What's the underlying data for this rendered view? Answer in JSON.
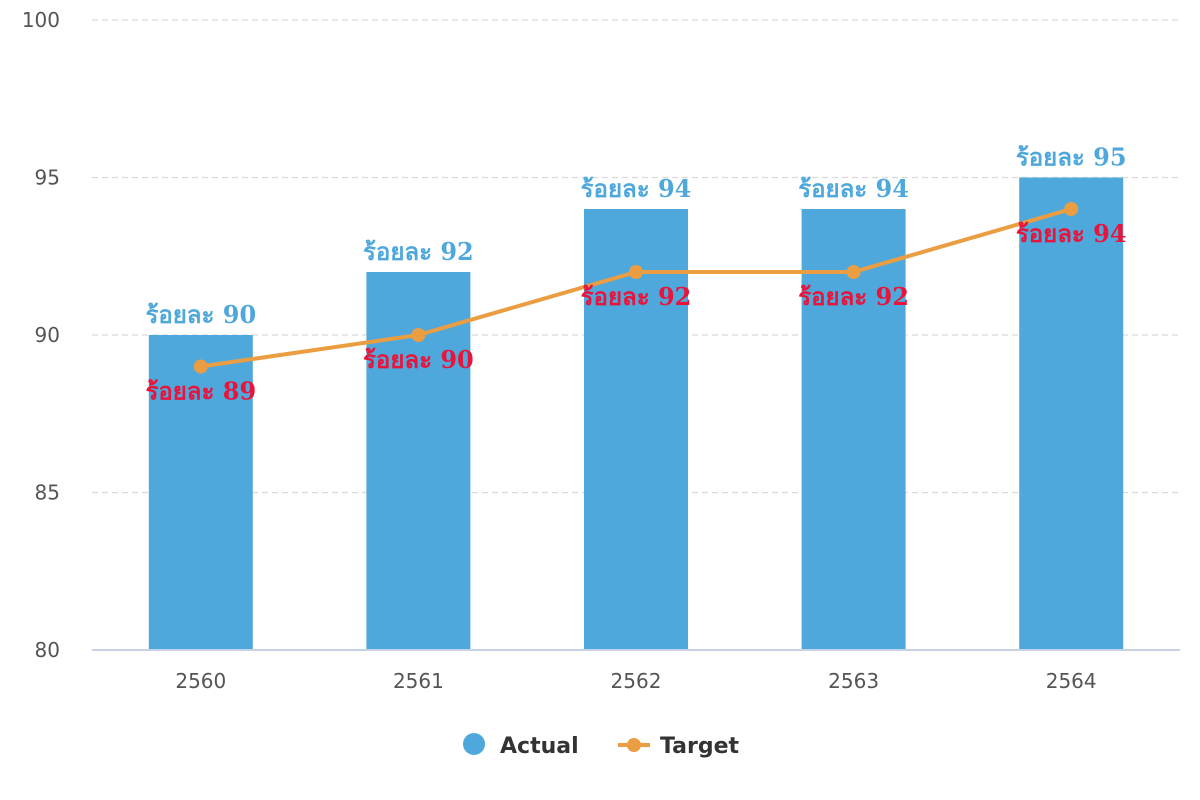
{
  "chart_data": {
    "type": "bar",
    "categories": [
      "2560",
      "2561",
      "2562",
      "2563",
      "2564"
    ],
    "series": [
      {
        "name": "Actual",
        "type": "bar",
        "values": [
          90,
          92,
          94,
          94,
          95
        ],
        "labels": [
          "ร้อยละ 90",
          "ร้อยละ 92",
          "ร้อยละ 94",
          "ร้อยละ 94",
          "ร้อยละ 95"
        ],
        "color": "#4fa8db",
        "label_color": "#4fa8db"
      },
      {
        "name": "Target",
        "type": "line",
        "values": [
          89,
          90,
          92,
          92,
          94
        ],
        "labels": [
          "ร้อยละ 89",
          "ร้อยละ 90",
          "ร้อยละ 92",
          "ร้อยละ 92",
          "ร้อยละ 94"
        ],
        "color": "#eb9d42",
        "label_color": "#e8143c"
      }
    ],
    "yticks": [
      "100",
      "95",
      "90",
      "85",
      "80"
    ],
    "ylim": [
      80,
      100
    ],
    "grid": true,
    "legend_position": "bottom-center"
  }
}
